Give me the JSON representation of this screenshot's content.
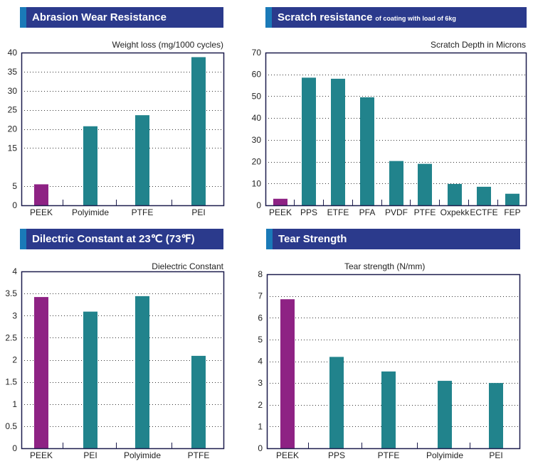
{
  "colors": {
    "header_bg": "#2b3a8c",
    "header_accent": "#1a7ab8",
    "peek_bar": "#8e2284",
    "other_bar": "#21838c",
    "frame": "#1c1c4c"
  },
  "chart_data": [
    {
      "type": "bar",
      "title": "Abrasion Wear Resistance",
      "subtitle": "",
      "ylabel": "Weight loss (mg/1000 cycles)",
      "xlabel": "",
      "categories": [
        "PEEK",
        "Polyimide",
        "PTFE",
        "PEI"
      ],
      "values": [
        5.5,
        20.7,
        23.6,
        38.8
      ],
      "highlight": [
        "PEEK"
      ],
      "ylim": [
        0,
        40
      ],
      "yticks": [
        0,
        5,
        15,
        20,
        25,
        30,
        35,
        40
      ],
      "ytick_labels": [
        "0",
        "5",
        "15",
        "20",
        "25",
        "30",
        "35",
        "40"
      ],
      "grid": true,
      "legend": "none"
    },
    {
      "type": "bar",
      "title": "Scratch resistance",
      "subtitle": "of coating with load of 6kg",
      "ylabel": "Scratch Depth in Microns",
      "xlabel": "",
      "categories": [
        "PEEK",
        "PPS",
        "ETFE",
        "PFA",
        "PVDF",
        "PTFE",
        "Oxpekk",
        "ECTFE",
        "FEP"
      ],
      "values": [
        3,
        58.5,
        58,
        49.5,
        20.3,
        19,
        9.8,
        8.5,
        5.3
      ],
      "highlight": [
        "PEEK"
      ],
      "ylim": [
        0,
        70
      ],
      "yticks": [
        0,
        10,
        20,
        30,
        40,
        50,
        60,
        70
      ],
      "ytick_labels": [
        "0",
        "10",
        "20",
        "30",
        "40",
        "50",
        "60",
        "70"
      ],
      "grid": true,
      "legend": "none"
    },
    {
      "type": "bar",
      "title": "Dilectric Constant at 23℃ (73℉)",
      "subtitle": "",
      "ylabel": "Dielectric Constant",
      "xlabel": "",
      "categories": [
        "PEEK",
        "PEI",
        "Polyimide",
        "PTFE"
      ],
      "values": [
        3.42,
        3.09,
        3.44,
        2.09
      ],
      "highlight": [
        "PEEK"
      ],
      "ylim": [
        0,
        4
      ],
      "yticks": [
        0,
        0.5,
        1,
        1.5,
        2,
        2.5,
        3,
        3.5,
        4
      ],
      "ytick_labels": [
        "0",
        "0.5",
        "1",
        "1.5",
        "2",
        "2.5",
        "3",
        "3.5",
        "4"
      ],
      "grid": true,
      "legend": "none"
    },
    {
      "type": "bar",
      "title": "Tear Strength",
      "subtitle": "",
      "ylabel": "Tear strength (N/mm)",
      "xlabel": "",
      "categories": [
        "PEEK",
        "PPS",
        "PTFE",
        "Polyimide",
        "PEI"
      ],
      "values": [
        6.85,
        4.2,
        3.53,
        3.1,
        3.0
      ],
      "highlight": [
        "PEEK"
      ],
      "ylim": [
        0,
        8
      ],
      "yticks": [
        0,
        1,
        2,
        3,
        4,
        5,
        6,
        7,
        8
      ],
      "ytick_labels": [
        "0",
        "1",
        "2",
        "3",
        "4",
        "5",
        "6",
        "7",
        "8"
      ],
      "grid": true,
      "legend": "none"
    }
  ]
}
